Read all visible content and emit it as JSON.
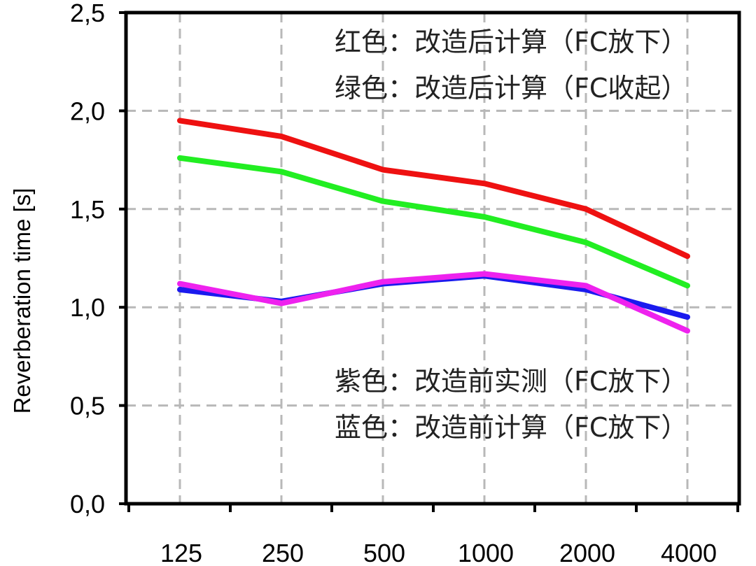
{
  "chart_data": {
    "type": "line",
    "title": "",
    "xlabel": "",
    "ylabel": "Reverberation time [s]",
    "categories": [
      "125",
      "250",
      "500",
      "1000",
      "2000",
      "4000"
    ],
    "ylim": [
      0,
      2.5
    ],
    "yticks": [
      "0,0",
      "0,5",
      "1,0",
      "1,5",
      "2,0",
      "2,5"
    ],
    "grid": true,
    "series": [
      {
        "key": "red",
        "color": "#ee1111",
        "values": [
          1.95,
          1.87,
          1.7,
          1.63,
          1.5,
          1.26
        ]
      },
      {
        "key": "green",
        "color": "#22ee22",
        "values": [
          1.76,
          1.69,
          1.54,
          1.46,
          1.33,
          1.11
        ]
      },
      {
        "key": "blue",
        "color": "#1a1aee",
        "values": [
          1.09,
          1.03,
          1.12,
          1.16,
          1.09,
          0.95
        ]
      },
      {
        "key": "magenta",
        "color": "#ee22ee",
        "values": [
          1.12,
          1.02,
          1.13,
          1.17,
          1.11,
          0.88
        ]
      }
    ],
    "annotations": {
      "red": "红色：改造后计算（FC放下）",
      "green": "绿色：改造后计算（FC收起）",
      "magenta": "紫色：改造前实测（FC放下）",
      "blue": "蓝色：改造前计算（FC放下）"
    }
  }
}
